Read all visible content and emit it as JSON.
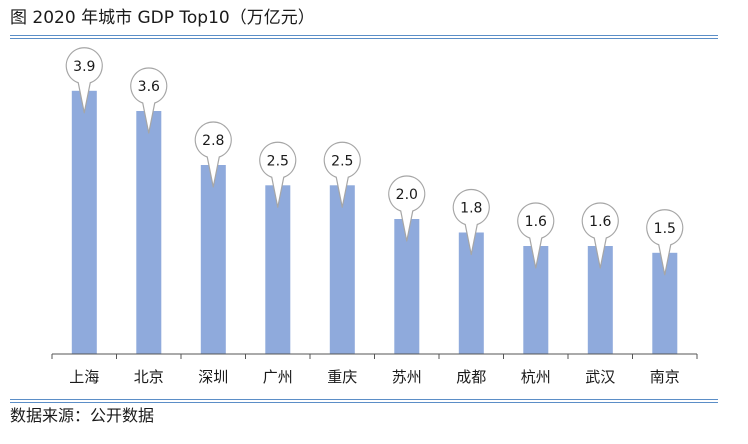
{
  "title": "图 2020 年城市 GDP Top10（万亿元）",
  "source": "数据来源：公开数据",
  "colors": {
    "bar": "#8faadc",
    "rule": "#5b8ec7",
    "callout_border": "#a6a6a6",
    "axis": "#555555"
  },
  "chart_data": {
    "type": "bar",
    "categories": [
      "上海",
      "北京",
      "深圳",
      "广州",
      "重庆",
      "苏州",
      "成都",
      "杭州",
      "武汉",
      "南京"
    ],
    "values": [
      3.9,
      3.6,
      2.8,
      2.5,
      2.5,
      2.0,
      1.8,
      1.6,
      1.6,
      1.5
    ],
    "value_labels": [
      "3.9",
      "3.6",
      "2.8",
      "2.5",
      "2.5",
      "2.0",
      "1.8",
      "1.6",
      "1.6",
      "1.5"
    ],
    "ylim": [
      0,
      4.8
    ],
    "grid": false,
    "legend": "none"
  }
}
